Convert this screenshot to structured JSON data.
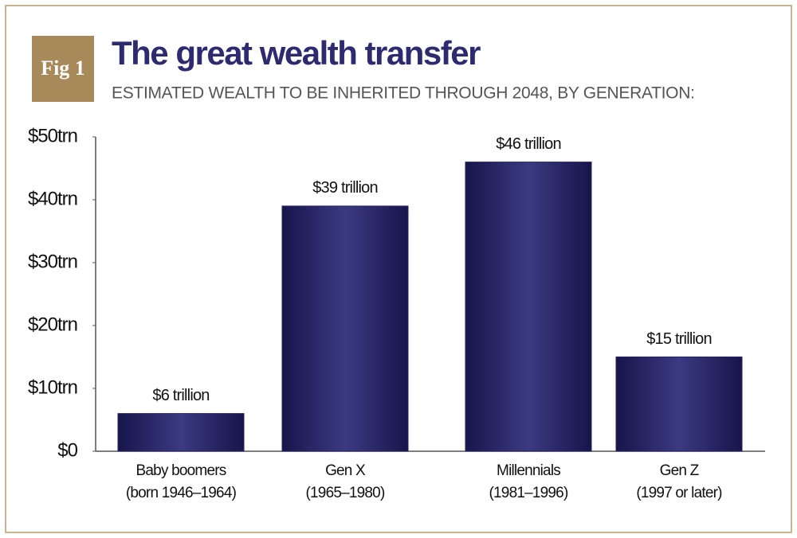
{
  "chart_data": {
    "type": "bar",
    "badge": "Fig 1",
    "title": "The great wealth transfer",
    "subtitle": "ESTIMATED WEALTH TO BE INHERITED THROUGH 2048, BY GENERATION:",
    "categories": [
      [
        "Baby boomers",
        "(born 1946–1964)"
      ],
      [
        "Gen X",
        "(1965–1980)"
      ],
      [
        "Millennials",
        "(1981–1996)"
      ],
      [
        "Gen Z",
        "(1997 or later)"
      ]
    ],
    "values": [
      6,
      39,
      46,
      15
    ],
    "value_labels": [
      "$6 trillion",
      "$39 trillion",
      "$46 trillion",
      "$15 trillion"
    ],
    "color": "#252360",
    "ylim": [
      0,
      50
    ],
    "yticks": [
      {
        "value": 0,
        "label": "$0"
      },
      {
        "value": 10,
        "label": "$10trn"
      },
      {
        "value": 20,
        "label": "$20trn"
      },
      {
        "value": 30,
        "label": "$30trn"
      },
      {
        "value": 40,
        "label": "$40trn"
      },
      {
        "value": 50,
        "label": "$50trn"
      }
    ],
    "grid": false
  }
}
